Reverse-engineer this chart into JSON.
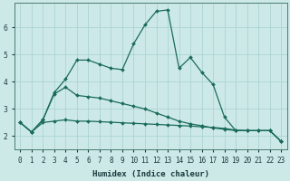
{
  "xlabel": "Humidex (Indice chaleur)",
  "background_color": "#cce9e8",
  "grid_color": "#aad4d2",
  "line_color": "#1a6b5a",
  "x_ticks": [
    0,
    1,
    2,
    3,
    4,
    5,
    6,
    7,
    8,
    9,
    10,
    11,
    12,
    13,
    14,
    15,
    16,
    17,
    18,
    19,
    20,
    21,
    22,
    23
  ],
  "ylim": [
    1.5,
    6.9
  ],
  "xlim": [
    -0.5,
    23.5
  ],
  "series1_x": [
    0,
    1,
    2,
    3,
    4,
    5,
    6,
    7,
    8,
    9,
    10,
    11,
    12,
    13,
    14,
    15,
    16,
    17,
    18,
    19,
    20,
    21,
    22,
    23
  ],
  "series1_y": [
    2.5,
    2.15,
    2.6,
    3.6,
    4.1,
    4.8,
    4.8,
    4.65,
    4.5,
    4.45,
    5.4,
    6.1,
    6.6,
    6.65,
    4.5,
    4.9,
    4.35,
    3.9,
    2.7,
    2.2,
    2.2,
    2.2,
    2.2,
    1.8
  ],
  "series2_x": [
    0,
    1,
    2,
    3,
    4,
    5,
    6,
    7,
    8,
    9,
    10,
    11,
    12,
    13,
    14,
    15,
    16,
    17,
    18,
    19,
    20,
    21,
    22,
    23
  ],
  "series2_y": [
    2.5,
    2.15,
    2.5,
    2.55,
    2.6,
    2.55,
    2.55,
    2.53,
    2.51,
    2.49,
    2.47,
    2.45,
    2.43,
    2.41,
    2.39,
    2.37,
    2.34,
    2.32,
    2.28,
    2.22,
    2.2,
    2.2,
    2.2,
    1.8
  ],
  "series3_x": [
    0,
    1,
    2,
    3,
    4,
    5,
    6,
    7,
    8,
    9,
    10,
    11,
    12,
    13,
    14,
    15,
    16,
    17,
    18,
    19,
    20,
    21,
    22,
    23
  ],
  "series3_y": [
    2.5,
    2.15,
    2.6,
    3.55,
    3.8,
    3.5,
    3.45,
    3.4,
    3.3,
    3.2,
    3.1,
    3.0,
    2.85,
    2.7,
    2.55,
    2.45,
    2.38,
    2.3,
    2.25,
    2.2,
    2.2,
    2.2,
    2.2,
    1.8
  ]
}
